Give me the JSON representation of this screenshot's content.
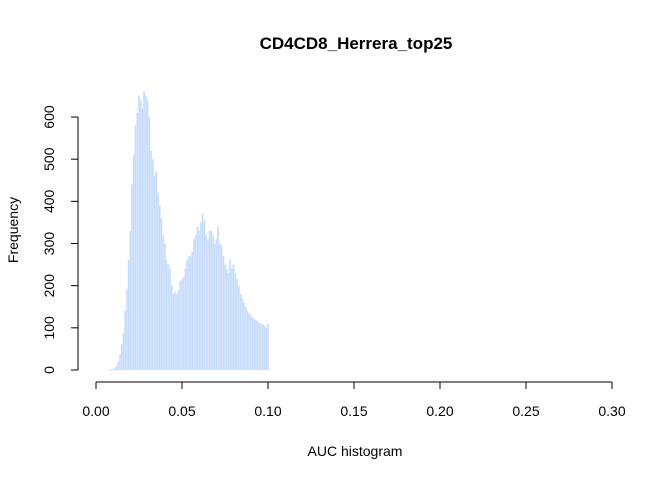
{
  "chart_data": {
    "type": "bar",
    "title": "CD4CD8_Herrera_top25",
    "xlabel": "AUC histogram",
    "ylabel": "Frequency",
    "xlim": [
      0.0,
      0.3
    ],
    "ylim": [
      0,
      650
    ],
    "x_ticks": [
      0.0,
      0.05,
      0.1,
      0.15,
      0.2,
      0.25,
      0.3
    ],
    "x_tick_labels": [
      "0.00",
      "0.05",
      "0.10",
      "0.15",
      "0.20",
      "0.25",
      "0.30"
    ],
    "y_ticks": [
      0,
      100,
      200,
      300,
      400,
      500,
      600
    ],
    "y_tick_labels": [
      "0",
      "100",
      "200",
      "300",
      "400",
      "500",
      "600"
    ],
    "bin_start": 0.0075,
    "bin_width": 0.001,
    "bar_color": "#c6dcfa",
    "grid": false,
    "values": [
      2,
      2,
      3,
      5,
      10,
      20,
      38,
      60,
      88,
      140,
      190,
      260,
      330,
      440,
      510,
      580,
      610,
      650,
      640,
      620,
      660,
      650,
      640,
      600,
      520,
      500,
      460,
      470,
      420,
      390,
      360,
      320,
      300,
      260,
      250,
      240,
      200,
      180,
      185,
      180,
      190,
      210,
      215,
      220,
      240,
      260,
      270,
      270,
      280,
      310,
      320,
      340,
      330,
      350,
      370,
      355,
      320,
      310,
      330,
      330,
      320,
      300,
      310,
      340,
      300,
      295,
      270,
      250,
      240,
      230,
      260,
      240,
      250,
      230,
      215,
      200,
      180,
      170,
      160,
      150,
      140,
      135,
      130,
      125,
      120,
      118,
      115,
      112,
      110,
      108,
      105,
      100,
      110
    ]
  }
}
